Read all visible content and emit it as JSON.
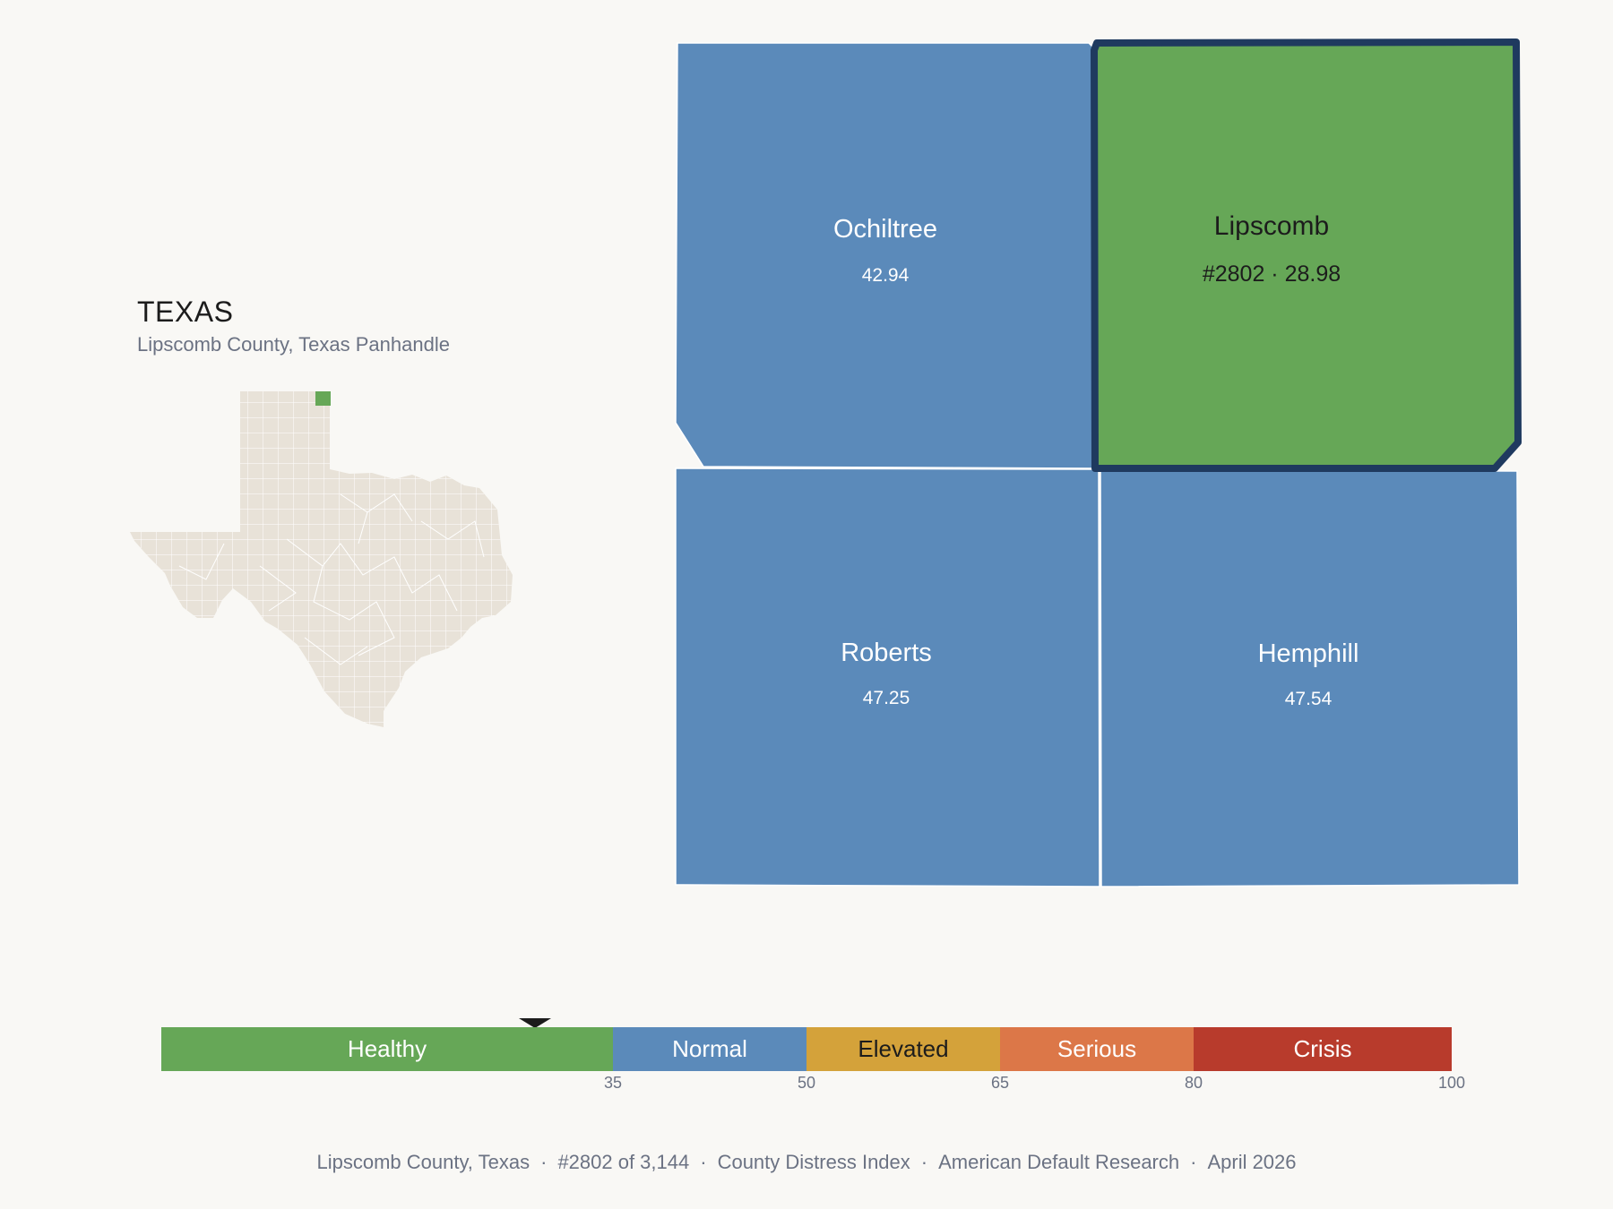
{
  "header": {
    "state": "TEXAS",
    "subtitle": "Lipscomb County, Texas Panhandle"
  },
  "locator": {
    "highlight_color": "#66a757",
    "base_color": "#e8e2d8",
    "grid_color": "#ffffff"
  },
  "counties": [
    {
      "name": "Ochiltree",
      "value": "42.94",
      "category": "Normal",
      "color": "#5b8aba"
    },
    {
      "name": "Lipscomb",
      "value": "#2802 · 28.98",
      "category": "Healthy",
      "color": "#66a757",
      "selected": true,
      "outline": "#1f3a5f"
    },
    {
      "name": "Roberts",
      "value": "47.25",
      "category": "Normal",
      "color": "#5b8aba"
    },
    {
      "name": "Hemphill",
      "value": "47.54",
      "category": "Normal",
      "color": "#5b8aba"
    }
  ],
  "scale": {
    "segments": [
      {
        "label": "Healthy",
        "from": 0,
        "to": 35,
        "color": "#66a757"
      },
      {
        "label": "Normal",
        "from": 35,
        "to": 50,
        "color": "#5b8aba"
      },
      {
        "label": "Elevated",
        "from": 50,
        "to": 65,
        "color": "#d4a23a"
      },
      {
        "label": "Serious",
        "from": 65,
        "to": 80,
        "color": "#dc7748"
      },
      {
        "label": "Crisis",
        "from": 80,
        "to": 100,
        "color": "#b83b2c"
      }
    ],
    "ticks": [
      "35",
      "50",
      "65",
      "80",
      "100"
    ],
    "marker_value": 28.98
  },
  "footer": {
    "items": [
      "Lipscomb County, Texas",
      "#2802 of 3,144",
      "County Distress Index",
      "American Default Research",
      "April 2026"
    ],
    "separator": "·"
  }
}
